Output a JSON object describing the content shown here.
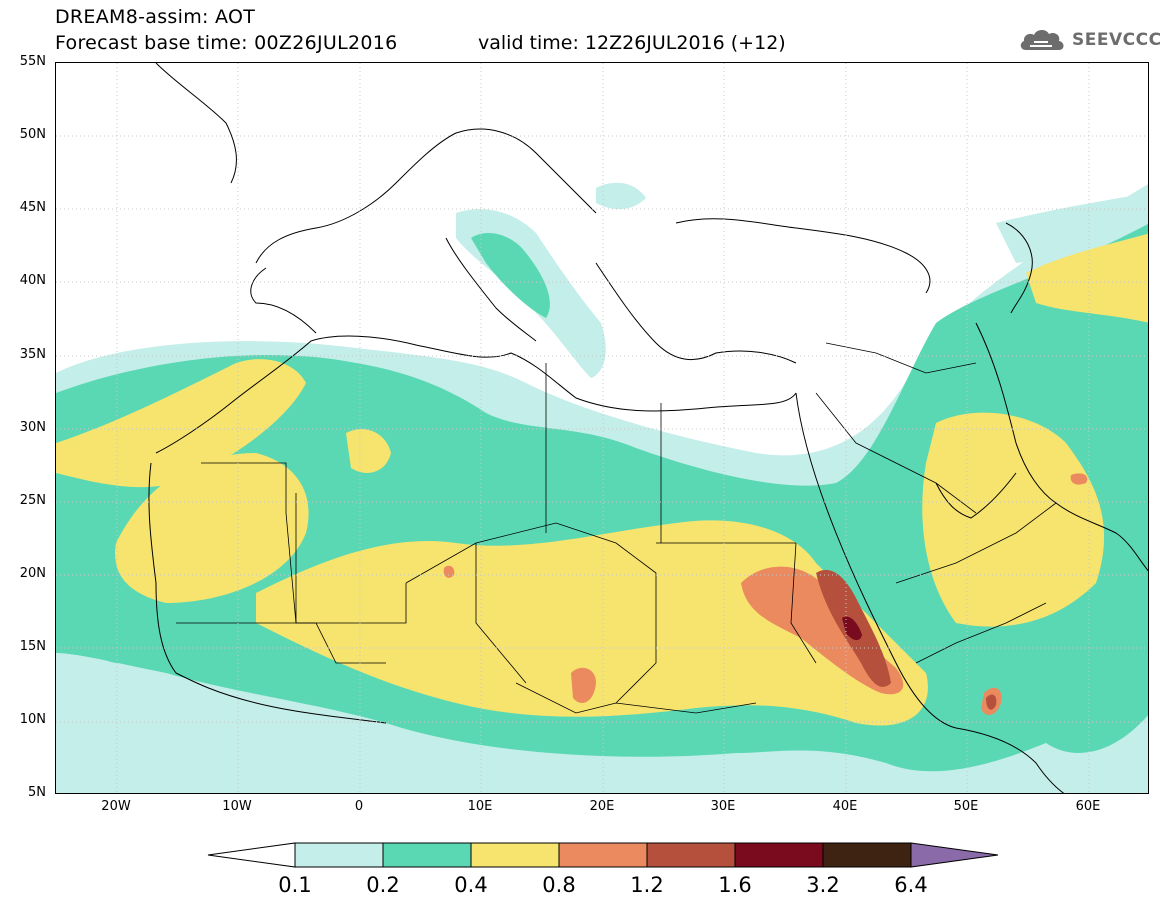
{
  "title": {
    "line1": "DREAM8-assim: AOT",
    "line2": "Forecast base time: 00Z26JUL2016",
    "valid": "valid time: 12Z26JUL2016 (+12)"
  },
  "logo": {
    "text": "SEEVCCC",
    "icon": "cloud-icon"
  },
  "map": {
    "lat_labels": [
      "55N",
      "50N",
      "45N",
      "40N",
      "35N",
      "30N",
      "25N",
      "20N",
      "15N",
      "10N",
      "5N"
    ],
    "lon_labels": [
      "20W",
      "10W",
      "0",
      "10E",
      "20E",
      "30E",
      "40E",
      "50E",
      "60E"
    ],
    "lon_range": [
      -25,
      65
    ],
    "lat_range": [
      5,
      55
    ],
    "field": "Aerosol optical thickness (dust)"
  },
  "colorbar": {
    "labels": [
      "0.1",
      "0.2",
      "0.4",
      "0.8",
      "1.2",
      "1.6",
      "3.2",
      "6.4"
    ],
    "colors": [
      "#c4eee9",
      "#5ad8b4",
      "#f6e46e",
      "#ea8a5e",
      "#b4503c",
      "#7a0a1e",
      "#3e2212",
      "#8a6aa8"
    ]
  },
  "colors": {
    "c1": "#c4eee9",
    "c2": "#5ad8b4",
    "c3": "#f6e46e",
    "c4": "#ea8a5e",
    "c5": "#b4503c",
    "c6": "#7a0a1e"
  }
}
